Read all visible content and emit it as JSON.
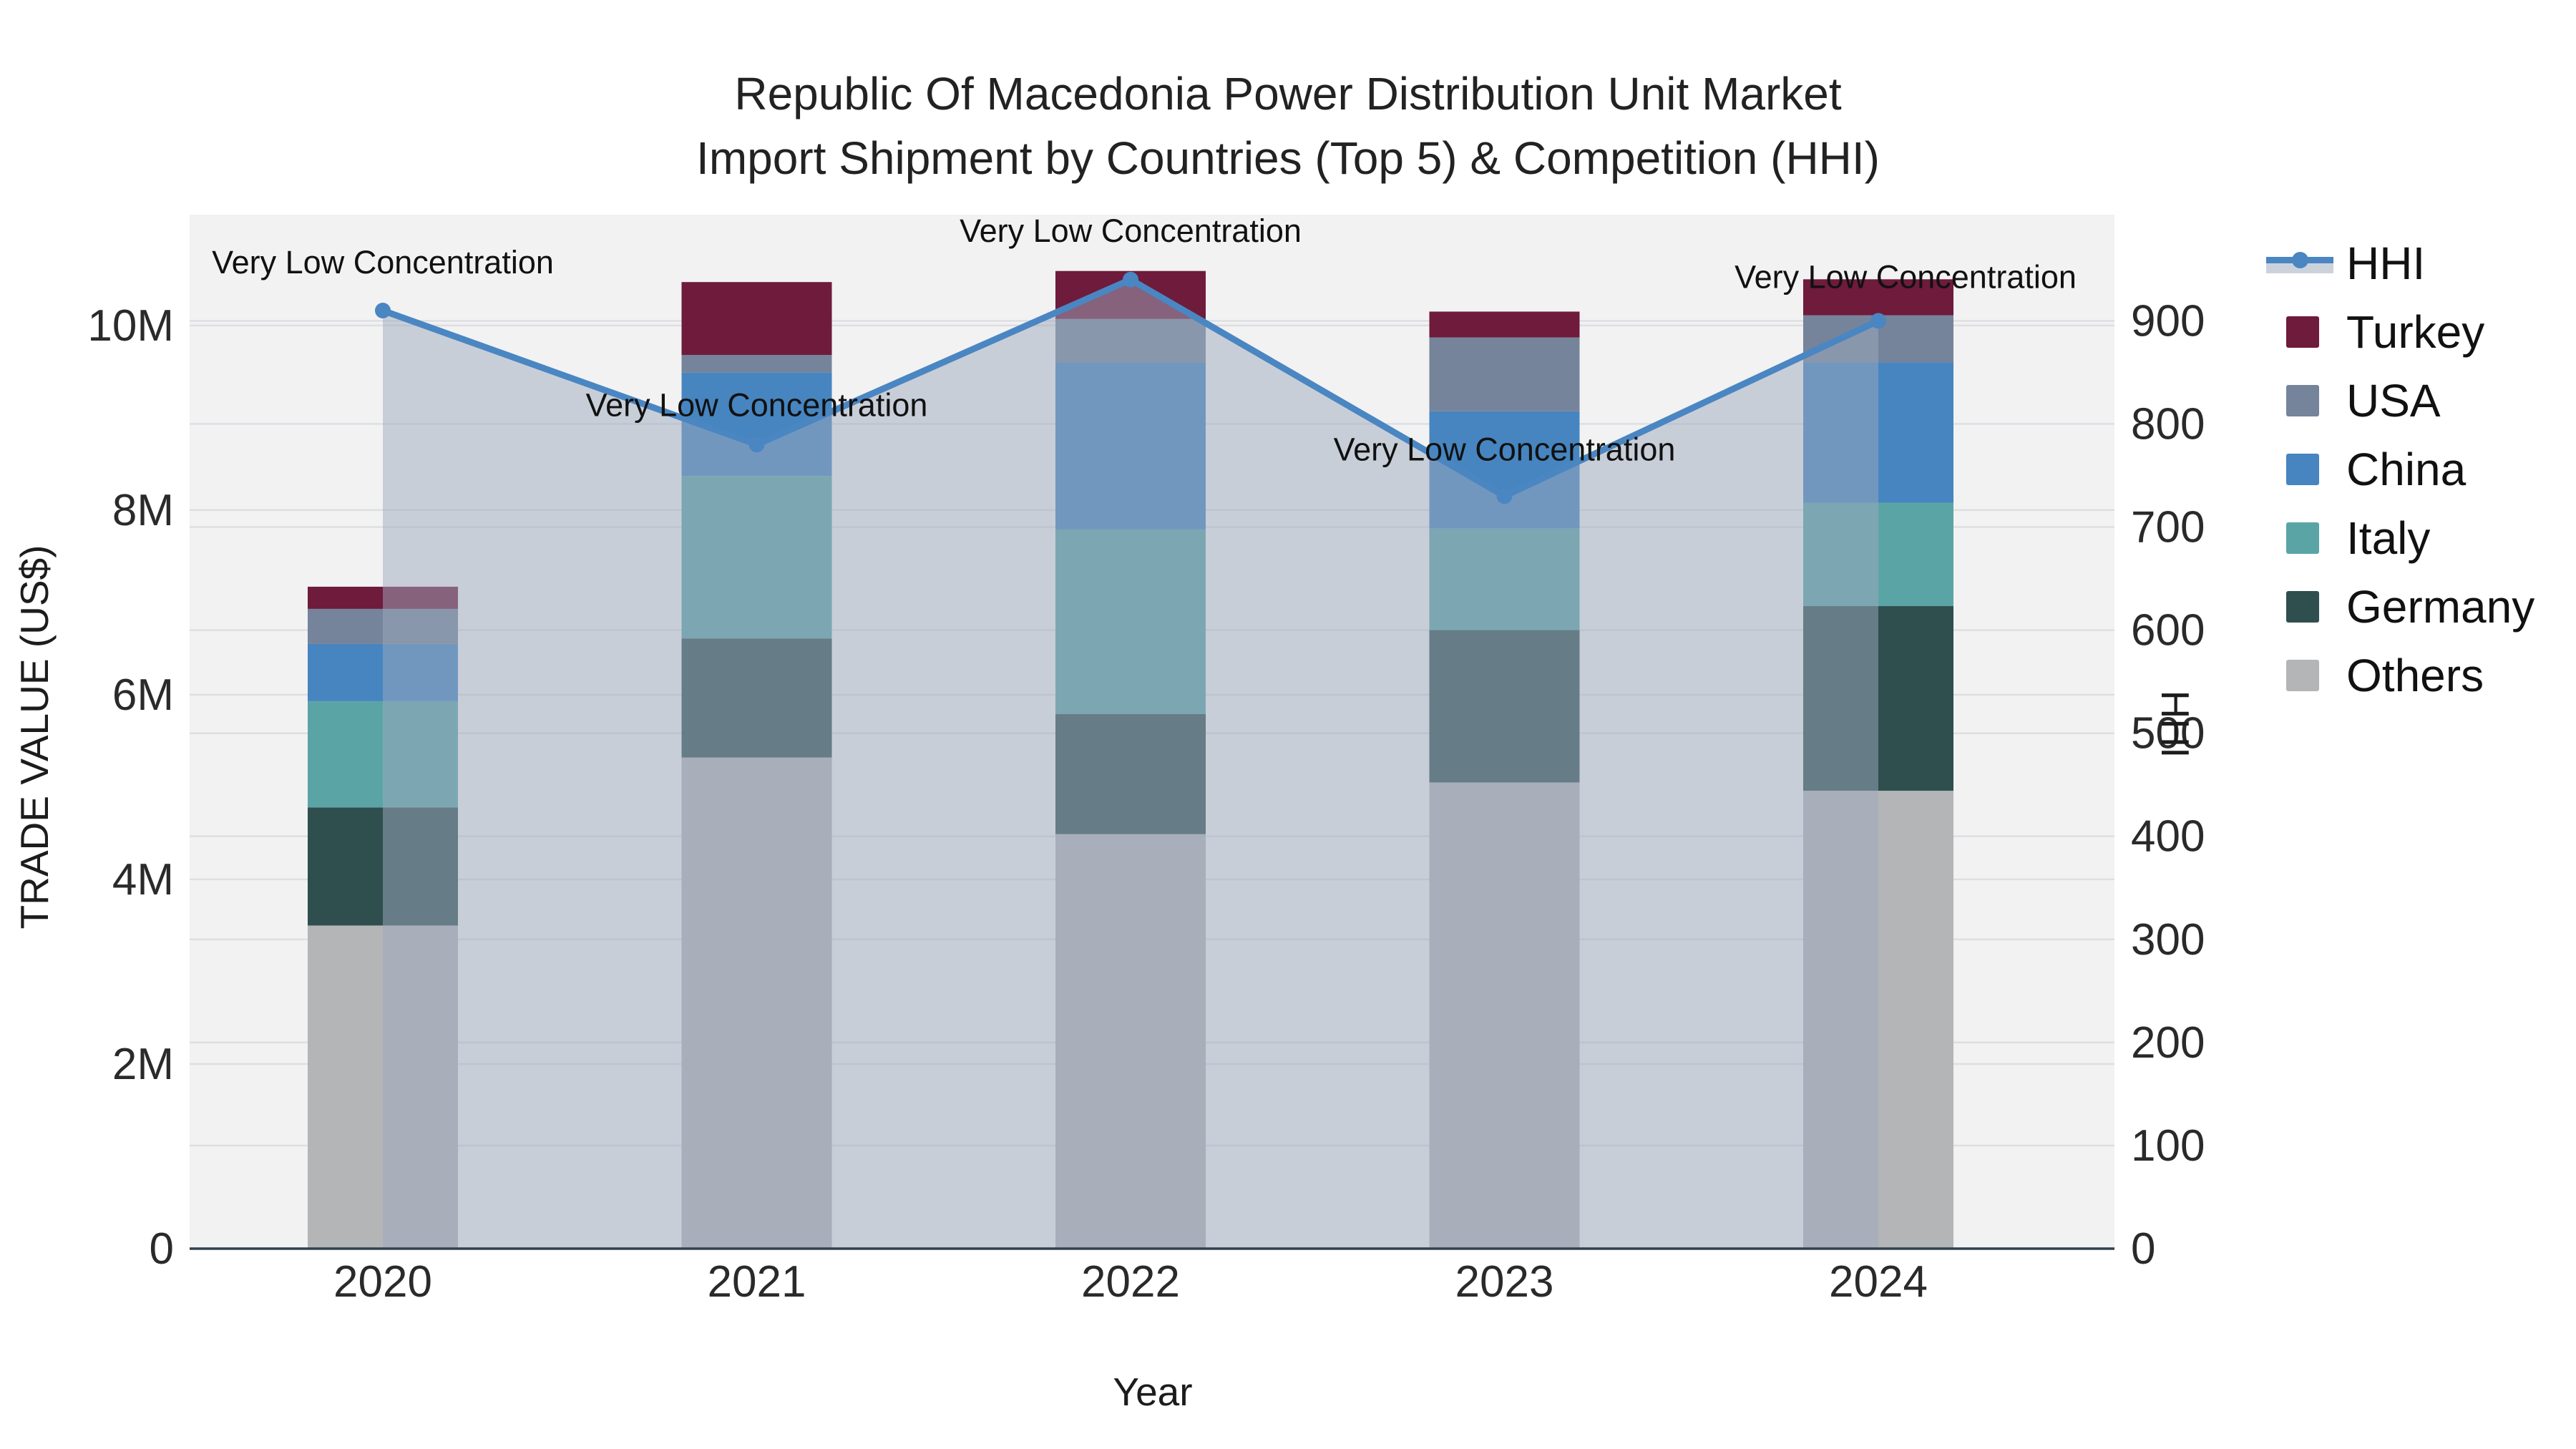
{
  "chart": {
    "title_line1": "Republic Of Macedonia Power Distribution Unit Market",
    "title_line2": "Import Shipment by Countries (Top 5) & Competition (HHI)",
    "x_axis_title": "Year",
    "y_left_title": "TRADE VALUE (US$)",
    "y_right_title": "HHI"
  },
  "chart_data": {
    "type": "combo: stacked-bar + line-with-area",
    "categories": [
      "2020",
      "2021",
      "2022",
      "2023",
      "2024"
    ],
    "value_unit": "US$ millions",
    "stack_order_bottom_to_top": [
      "Others",
      "Germany",
      "Italy",
      "China",
      "USA",
      "Turkey"
    ],
    "series": [
      {
        "name": "Others",
        "color": "#b3b5b6",
        "values": [
          3.5,
          5.32,
          4.49,
          5.05,
          4.96
        ]
      },
      {
        "name": "Germany",
        "color": "#2e4f4e",
        "values": [
          1.28,
          1.29,
          1.3,
          1.65,
          2.0
        ]
      },
      {
        "name": "Italy",
        "color": "#5ba4a6",
        "values": [
          1.15,
          1.76,
          2.0,
          1.1,
          1.12
        ]
      },
      {
        "name": "China",
        "color": "#4685c0",
        "values": [
          0.62,
          1.12,
          1.81,
          1.27,
          1.52
        ]
      },
      {
        "name": "USA",
        "color": "#75849a",
        "values": [
          0.38,
          0.19,
          0.47,
          0.8,
          0.51
        ]
      },
      {
        "name": "Turkey",
        "color": "#6e1b3c",
        "values": [
          0.24,
          0.79,
          0.52,
          0.28,
          0.39
        ]
      }
    ],
    "line_series": {
      "name": "HHI",
      "color": "#4a86c2",
      "area_fill": "rgba(158,169,190,0.5)",
      "values": [
        910,
        780,
        940,
        730,
        900
      ]
    },
    "annotations": [
      "Very Low Concentration",
      "Very Low Concentration",
      "Very Low Concentration",
      "Very Low Concentration",
      "Very Low Concentration"
    ],
    "y_left": {
      "tick_labels": [
        "0",
        "2M",
        "4M",
        "6M",
        "8M",
        "10M"
      ],
      "tick_values": [
        0,
        2,
        4,
        6,
        8,
        10
      ],
      "axis_max": 11.2
    },
    "y_right": {
      "tick_labels": [
        "0",
        "100",
        "200",
        "300",
        "400",
        "500",
        "600",
        "700",
        "800",
        "900"
      ],
      "tick_values": [
        0,
        100,
        200,
        300,
        400,
        500,
        600,
        700,
        800,
        900
      ],
      "axis_max": 1003
    },
    "layout_hints": {
      "plot_background": "#f2f2f3",
      "gridline_color": "#dcdee1",
      "x_axis_line_color": "#30404f",
      "grid_on": true,
      "legend_position": "right"
    }
  },
  "legend": {
    "items": [
      {
        "label": "HHI",
        "type": "line",
        "color": "#4a86c2"
      },
      {
        "label": "Turkey",
        "type": "swatch",
        "color": "#6e1b3c"
      },
      {
        "label": "USA",
        "type": "swatch",
        "color": "#75849a"
      },
      {
        "label": "China",
        "type": "swatch",
        "color": "#4685c0"
      },
      {
        "label": "Italy",
        "type": "swatch",
        "color": "#5ba4a6"
      },
      {
        "label": "Germany",
        "type": "swatch",
        "color": "#2e4f4e"
      },
      {
        "label": "Others",
        "type": "swatch",
        "color": "#b3b5b6"
      }
    ]
  }
}
